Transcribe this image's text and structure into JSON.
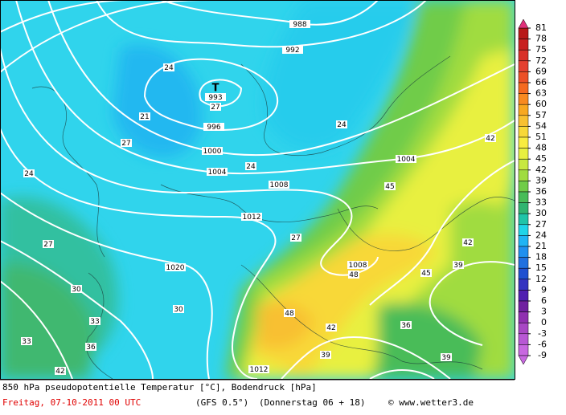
{
  "colorbar": {
    "ticks": [
      81,
      78,
      75,
      72,
      69,
      66,
      63,
      60,
      57,
      54,
      51,
      48,
      45,
      42,
      39,
      36,
      33,
      30,
      27,
      24,
      21,
      18,
      15,
      12,
      9,
      6,
      3,
      0,
      -3,
      -6,
      -9
    ],
    "colors": [
      "#e0307a",
      "#b81818",
      "#c82020",
      "#d83028",
      "#e44030",
      "#ec5028",
      "#f46a20",
      "#f88a20",
      "#f8a820",
      "#f8c030",
      "#f8d838",
      "#f8ec40",
      "#e8f040",
      "#c8e840",
      "#a0dc40",
      "#70cc48",
      "#48bc58",
      "#30b470",
      "#20c4a8",
      "#20d4e8",
      "#20b4f4",
      "#2090f0",
      "#2070e0",
      "#2050d0",
      "#3434c0",
      "#5020b0",
      "#7020a0",
      "#9030b0",
      "#a848c4",
      "#b858d4",
      "#c868e0"
    ]
  },
  "map_labels": {
    "isobars": [
      988,
      992,
      996,
      1000,
      1004,
      1008,
      1012,
      1020,
      1004,
      1008,
      1012
    ],
    "low_symbol": "T",
    "low_pressure": 993,
    "temperatures": [
      24,
      27,
      24,
      21,
      27,
      24,
      24,
      27,
      30,
      33,
      36,
      42,
      45,
      48,
      48,
      45,
      39,
      42,
      42,
      36,
      39,
      42,
      39,
      30,
      33,
      27
    ]
  },
  "footer": {
    "title": "850 hPa pseudopotentielle Temperatur [°C], Bodendruck [hPa]",
    "date": "Freitag, 07-10-2011  00 UTC",
    "model": "(GFS 0.5°)",
    "run": "(Donnerstag 06 + 18)",
    "credit": "© www.wetter3.de"
  }
}
